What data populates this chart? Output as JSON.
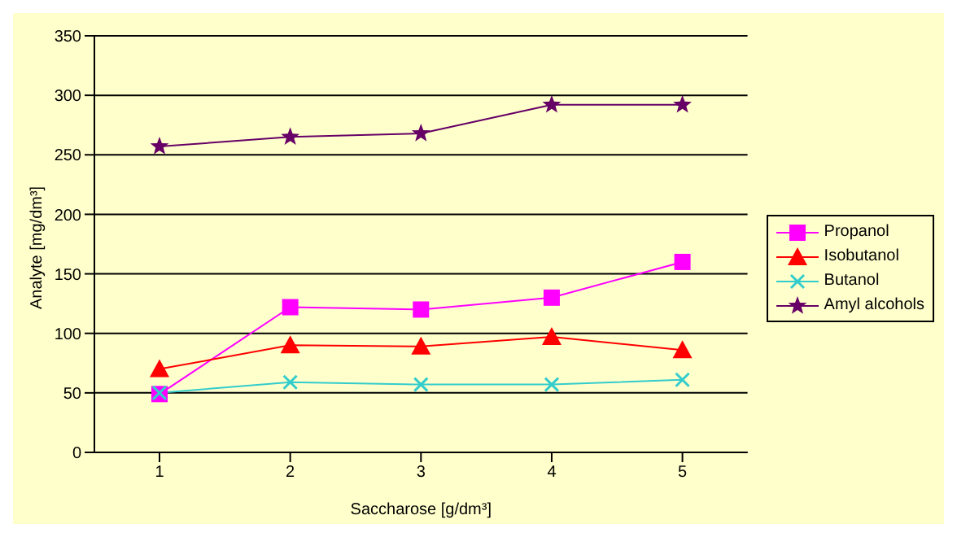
{
  "chart_data": {
    "type": "line",
    "xlabel": "Saccharose [g/dm³]",
    "ylabel": "Analyte [mg/dm³]",
    "categories": [
      "1",
      "2",
      "3",
      "4",
      "5"
    ],
    "ylim": [
      0,
      350
    ],
    "yticks": [
      0,
      50,
      100,
      150,
      200,
      250,
      300,
      350
    ],
    "grid": "y",
    "legend": "right",
    "series": [
      {
        "name": "Propanol",
        "color": "#ff00ff",
        "marker": "square",
        "values": [
          49,
          122,
          120,
          130,
          160
        ]
      },
      {
        "name": "Isobutanol",
        "color": "#ff0000",
        "marker": "triangle",
        "values": [
          70,
          90,
          89,
          97,
          86
        ]
      },
      {
        "name": "Butanol",
        "color": "#33cccc",
        "marker": "cross",
        "values": [
          50,
          59,
          57,
          57,
          61
        ]
      },
      {
        "name": "Amyl alcohols",
        "color": "#660066",
        "marker": "star",
        "values": [
          257,
          265,
          268,
          292,
          292
        ]
      }
    ]
  }
}
